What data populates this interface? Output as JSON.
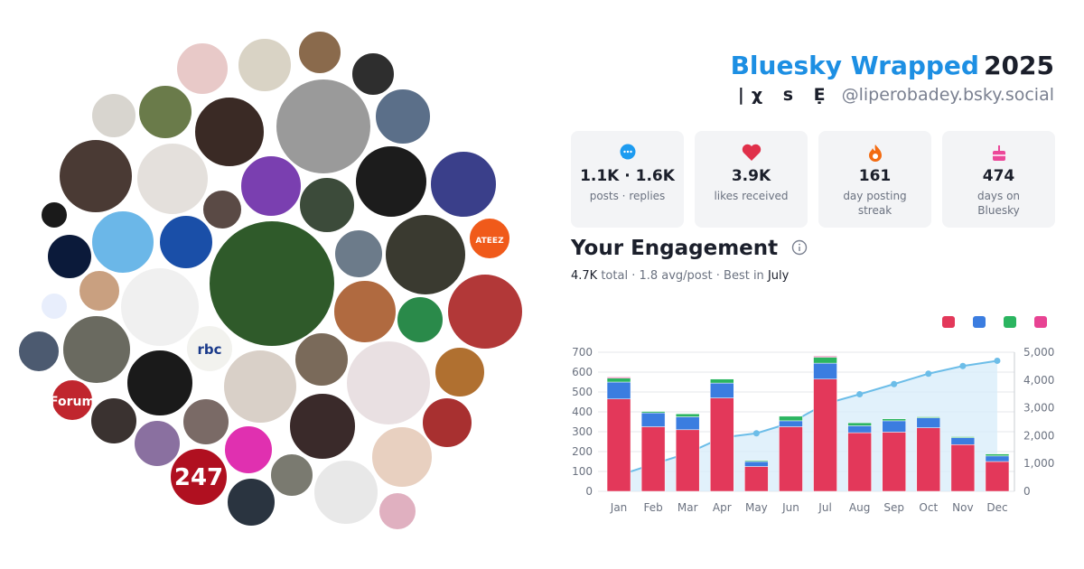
{
  "header": {
    "title": "Bluesky Wrapped",
    "year": "2025",
    "glyphs": "|χ s Ẹ",
    "handle": "@liperobadey.bsky.social"
  },
  "stats": [
    {
      "value": "1.1K · 1.6K",
      "label": "posts · replies"
    },
    {
      "value": "3.9K",
      "label": "likes received"
    },
    {
      "value": "161",
      "label": "day posting streak"
    },
    {
      "value": "474",
      "label": "days on Bluesky"
    }
  ],
  "engagement": {
    "title": "Your Engagement",
    "total": "4.7K",
    "middle": " total · 1.8 avg/post · Best in ",
    "best": "July"
  },
  "avatar_labels": [
    "Forum",
    "247",
    "rbc",
    "ATEEZ"
  ],
  "chart_data": {
    "type": "bar",
    "stacked": true,
    "categories": [
      "Jan",
      "Feb",
      "Mar",
      "Apr",
      "May",
      "Jun",
      "Jul",
      "Aug",
      "Sep",
      "Oct",
      "Nov",
      "Dec"
    ],
    "series": [
      {
        "color": "#e3385a",
        "values": [
          465,
          325,
          310,
          470,
          125,
          325,
          565,
          295,
          298,
          320,
          235,
          150
        ]
      },
      {
        "color": "#3b7de0",
        "values": [
          85,
          70,
          65,
          75,
          25,
          30,
          80,
          35,
          57,
          50,
          35,
          28
        ]
      },
      {
        "color": "#2bb560",
        "values": [
          20,
          7,
          15,
          20,
          5,
          23,
          30,
          15,
          10,
          5,
          5,
          10
        ]
      },
      {
        "color": "#e84393",
        "values": [
          5,
          0,
          0,
          0,
          0,
          0,
          5,
          0,
          0,
          0,
          0,
          0
        ]
      },
      {
        "type": "line",
        "axis": "y2",
        "color": "#6cbde8",
        "fill": "#d9eefa",
        "values": [
          575,
          977,
          1367,
          1932,
          2087,
          2465,
          3145,
          3490,
          3855,
          4230,
          4505,
          4693
        ]
      }
    ],
    "ylim": [
      0,
      700
    ],
    "yticks": [
      0,
      100,
      200,
      300,
      400,
      500,
      600,
      700
    ],
    "y2lim": [
      0,
      5000
    ],
    "y2ticks": [
      0,
      {
        "value": 1000,
        "label": "1,000"
      },
      {
        "value": 2000,
        "label": "2,000"
      },
      {
        "value": 3000,
        "label": "3,000"
      },
      {
        "value": 4000,
        "label": "4,000"
      },
      {
        "value": 5000,
        "label": "5,000"
      }
    ],
    "grid": true
  }
}
